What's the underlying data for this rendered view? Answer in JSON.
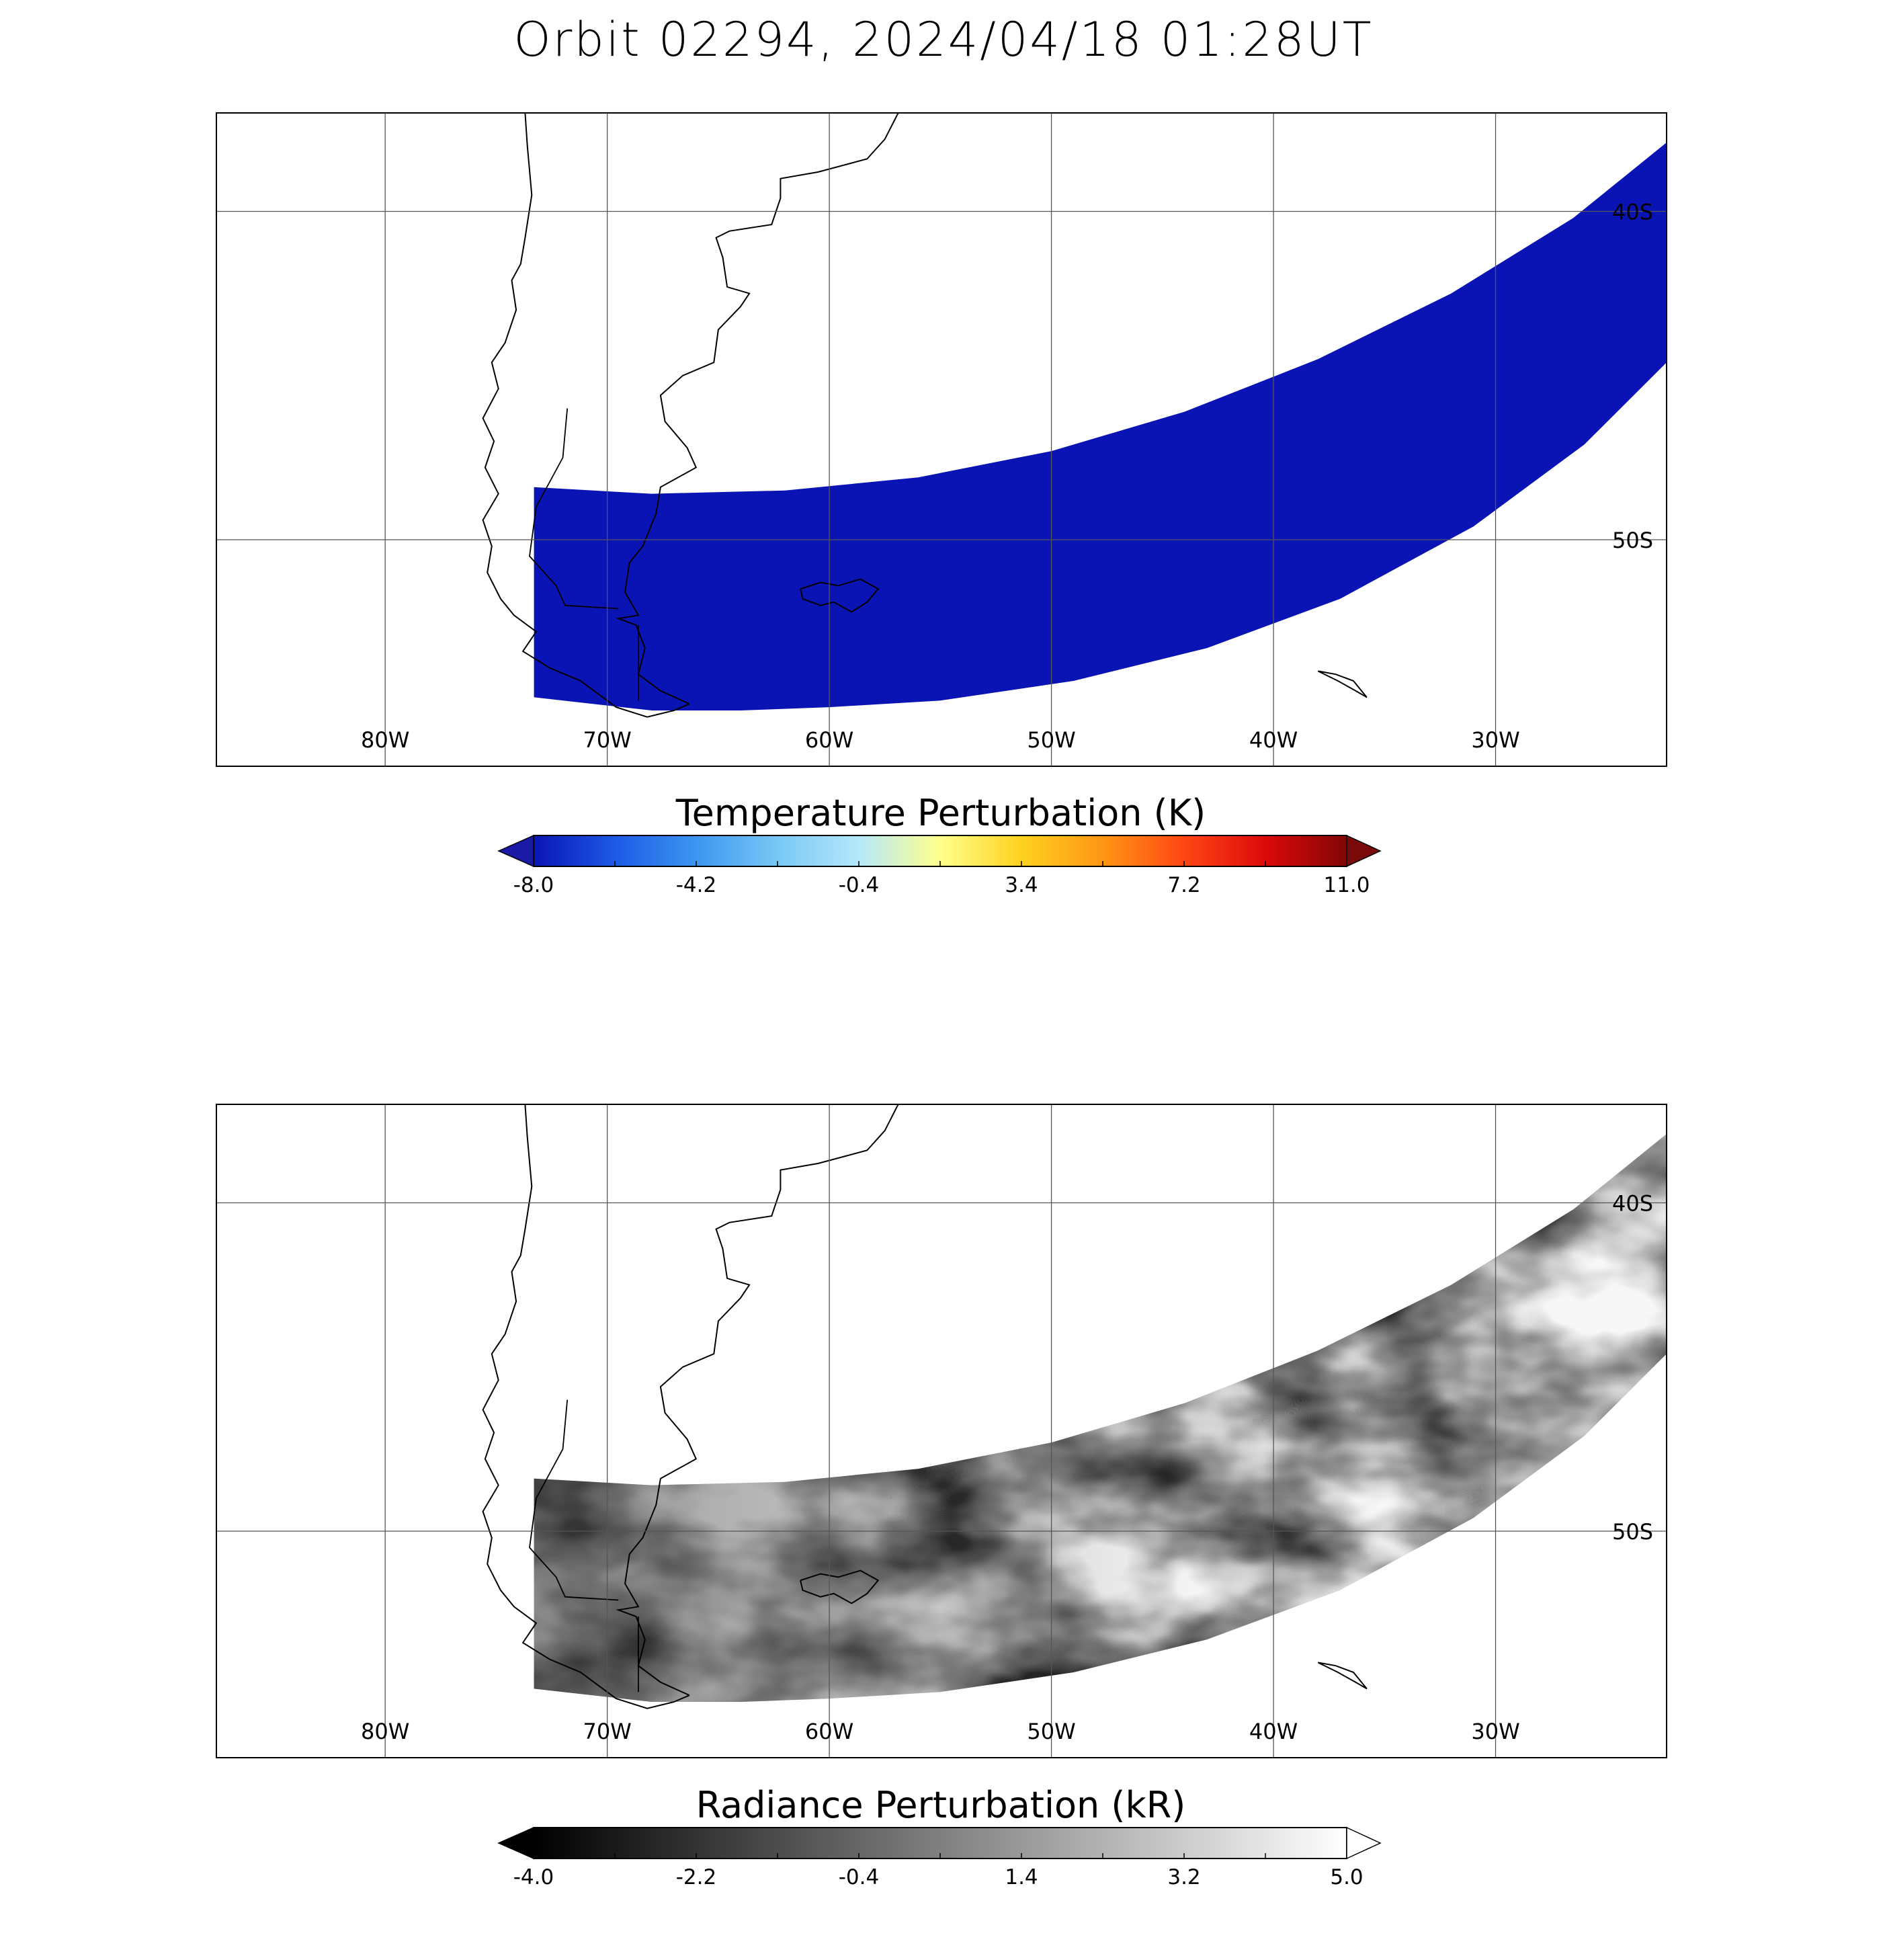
{
  "title": "Orbit 02294, 2024/04/18 01:28UT",
  "map": {
    "lon_labels": [
      "80W",
      "70W",
      "60W",
      "50W",
      "40W",
      "30W"
    ],
    "lat_labels": [
      "40S",
      "50S"
    ],
    "lon_ticks": [
      -80,
      -70,
      -60,
      -50,
      -40,
      -30
    ],
    "lat_ticks": [
      -40,
      -50
    ],
    "extent": {
      "lon_min": -87.6,
      "lon_max": -22.3,
      "lat_min": -56.9,
      "lat_max": -37.0
    }
  },
  "panels": [
    {
      "id": "temperature",
      "colorbar": {
        "label": "Temperature Perturbation (K)",
        "tick_labels": [
          "-8.0",
          "-4.2",
          "-0.4",
          "3.4",
          "7.2",
          "11.0"
        ],
        "min": -8.0,
        "max": 11.0,
        "under_color": "#1a1aa6",
        "over_color": "#7a0a0a",
        "colors": [
          "#0a14b4",
          "#1c5ae6",
          "#3c96f0",
          "#78c8f5",
          "#b4e8fa",
          "#ffff8c",
          "#ffd21e",
          "#ff9614",
          "#ff4614",
          "#dc0a0a",
          "#820505"
        ]
      }
    },
    {
      "id": "radiance",
      "colorbar": {
        "label": "Radiance Perturbation (kR)",
        "tick_labels": [
          "-4.0",
          "-2.2",
          "-0.4",
          "1.4",
          "3.2",
          "5.0"
        ],
        "min": -4.0,
        "max": 5.0,
        "under_color": "#000000",
        "over_color": "#ffffff",
        "colors": [
          "#000000",
          "#ffffff"
        ]
      }
    }
  ]
}
